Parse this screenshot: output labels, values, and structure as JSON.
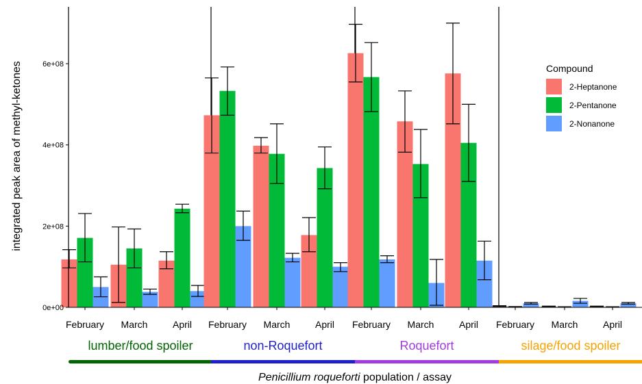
{
  "chart_data": {
    "type": "bar",
    "ylabel": "integrated peak area of methyl-ketones",
    "xlabel_italic": "Penicillium roqueforti",
    "xlabel_rest": " population / assay",
    "ylim": [
      0,
      740000000
    ],
    "yticks": [
      {
        "value": 0,
        "label": "0e+00"
      },
      {
        "value": 200000000,
        "label": "2e+08"
      },
      {
        "value": 400000000,
        "label": "4e+08"
      },
      {
        "value": 600000000,
        "label": "6e+08"
      }
    ],
    "grid": false,
    "legend": {
      "title": "Compound",
      "position": "right",
      "entries": [
        "2-Heptanone",
        "2-Pentanone",
        "2-Nonanone"
      ]
    },
    "series_colors": {
      "2-Heptanone": "#F8766D",
      "2-Pentanone": "#00BA38",
      "2-Nonanone": "#619CFF"
    },
    "categories": [
      "February",
      "March",
      "April"
    ],
    "panels": [
      {
        "label": "lumber/food spoiler",
        "color": "#006400",
        "groups": [
          {
            "category": "February",
            "bars": [
              {
                "series": "2-Heptanone",
                "value": 118000000,
                "lo": 97000000,
                "hi": 142000000
              },
              {
                "series": "2-Pentanone",
                "value": 171000000,
                "lo": 112000000,
                "hi": 231000000
              },
              {
                "series": "2-Nonanone",
                "value": 50000000,
                "lo": 26000000,
                "hi": 75000000
              }
            ]
          },
          {
            "category": "March",
            "bars": [
              {
                "series": "2-Heptanone",
                "value": 105000000,
                "lo": 12000000,
                "hi": 198000000
              },
              {
                "series": "2-Pentanone",
                "value": 145000000,
                "lo": 97000000,
                "hi": 193000000
              },
              {
                "series": "2-Nonanone",
                "value": 38000000,
                "lo": 32000000,
                "hi": 45000000
              }
            ]
          },
          {
            "category": "April",
            "bars": [
              {
                "series": "2-Heptanone",
                "value": 115000000,
                "lo": 95000000,
                "hi": 137000000
              },
              {
                "series": "2-Pentanone",
                "value": 243000000,
                "lo": 233000000,
                "hi": 254000000
              },
              {
                "series": "2-Nonanone",
                "value": 40000000,
                "lo": 27000000,
                "hi": 54000000
              }
            ]
          }
        ]
      },
      {
        "label": "non-Roquefort",
        "color": "#1E1ECD",
        "groups": [
          {
            "category": "February",
            "bars": [
              {
                "series": "2-Heptanone",
                "value": 473000000,
                "lo": 380000000,
                "hi": 565000000
              },
              {
                "series": "2-Pentanone",
                "value": 533000000,
                "lo": 473000000,
                "hi": 592000000
              },
              {
                "series": "2-Nonanone",
                "value": 200000000,
                "lo": 165000000,
                "hi": 237000000
              }
            ]
          },
          {
            "category": "March",
            "bars": [
              {
                "series": "2-Heptanone",
                "value": 398000000,
                "lo": 380000000,
                "hi": 418000000
              },
              {
                "series": "2-Pentanone",
                "value": 378000000,
                "lo": 305000000,
                "hi": 452000000
              },
              {
                "series": "2-Nonanone",
                "value": 122000000,
                "lo": 112000000,
                "hi": 133000000
              }
            ]
          },
          {
            "category": "April",
            "bars": [
              {
                "series": "2-Heptanone",
                "value": 178000000,
                "lo": 137000000,
                "hi": 221000000
              },
              {
                "series": "2-Pentanone",
                "value": 343000000,
                "lo": 292000000,
                "hi": 395000000
              },
              {
                "series": "2-Nonanone",
                "value": 100000000,
                "lo": 88000000,
                "hi": 110000000
              }
            ]
          }
        ]
      },
      {
        "label": "Roquefort",
        "color": "#A23BE0",
        "groups": [
          {
            "category": "February",
            "bars": [
              {
                "series": "2-Heptanone",
                "value": 626000000,
                "lo": 555000000,
                "hi": 697000000
              },
              {
                "series": "2-Pentanone",
                "value": 567000000,
                "lo": 482000000,
                "hi": 652000000
              },
              {
                "series": "2-Nonanone",
                "value": 118000000,
                "lo": 110000000,
                "hi": 127000000
              }
            ]
          },
          {
            "category": "March",
            "bars": [
              {
                "series": "2-Heptanone",
                "value": 458000000,
                "lo": 382000000,
                "hi": 533000000
              },
              {
                "series": "2-Pentanone",
                "value": 353000000,
                "lo": 270000000,
                "hi": 438000000
              },
              {
                "series": "2-Nonanone",
                "value": 60000000,
                "lo": 5000000,
                "hi": 118000000
              }
            ]
          },
          {
            "category": "April",
            "bars": [
              {
                "series": "2-Heptanone",
                "value": 576000000,
                "lo": 452000000,
                "hi": 700000000
              },
              {
                "series": "2-Pentanone",
                "value": 405000000,
                "lo": 310000000,
                "hi": 500000000
              },
              {
                "series": "2-Nonanone",
                "value": 115000000,
                "lo": 68000000,
                "hi": 163000000
              }
            ]
          }
        ]
      },
      {
        "label": "silage/food spoiler",
        "color": "#F5A300",
        "groups": [
          {
            "category": "February",
            "bars": [
              {
                "series": "2-Heptanone",
                "value": 3000000,
                "lo": 2000000,
                "hi": 4000000
              },
              {
                "series": "2-Pentanone",
                "value": 1500000,
                "lo": 1000000,
                "hi": 2000000
              },
              {
                "series": "2-Nonanone",
                "value": 10000000,
                "lo": 8000000,
                "hi": 12000000
              }
            ]
          },
          {
            "category": "March",
            "bars": [
              {
                "series": "2-Heptanone",
                "value": 2000000,
                "lo": 1000000,
                "hi": 3000000
              },
              {
                "series": "2-Pentanone",
                "value": 1000000,
                "lo": 500000,
                "hi": 1500000
              },
              {
                "series": "2-Nonanone",
                "value": 16000000,
                "lo": 10000000,
                "hi": 22000000
              }
            ]
          },
          {
            "category": "April",
            "bars": [
              {
                "series": "2-Heptanone",
                "value": 2000000,
                "lo": 1000000,
                "hi": 3000000
              },
              {
                "series": "2-Pentanone",
                "value": 1000000,
                "lo": 500000,
                "hi": 1500000
              },
              {
                "series": "2-Nonanone",
                "value": 10000000,
                "lo": 8000000,
                "hi": 12000000
              }
            ]
          }
        ]
      }
    ]
  }
}
